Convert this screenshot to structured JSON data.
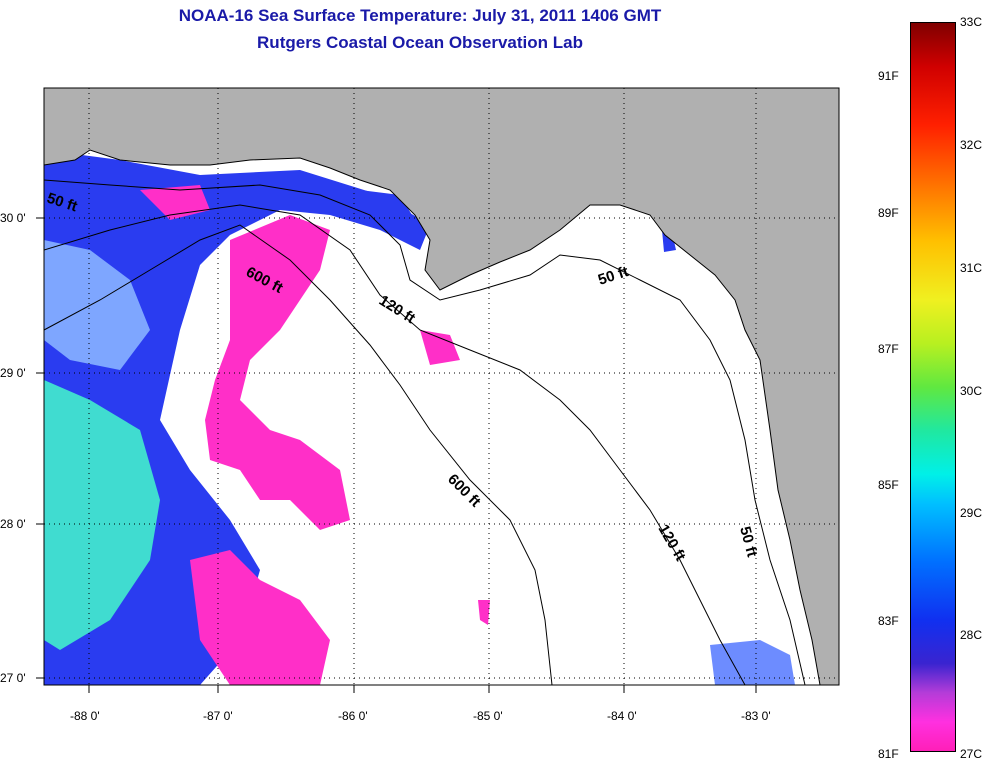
{
  "header": {
    "title_line1": "NOAA-16 Sea Surface Temperature:  July 31, 2011 1406 GMT",
    "title_line2": "Rutgers Coastal Ocean Observation Lab"
  },
  "map": {
    "longitude_labels": [
      "-88 0'",
      "-87 0'",
      "-86 0'",
      "-85 0'",
      "-84 0'",
      "-83 0'"
    ],
    "latitude_labels": [
      "30 0'",
      "29 0'",
      "28 0'",
      "27 0'"
    ],
    "contour_labels": [
      "50 ft",
      "600 ft",
      "120 ft",
      "50 ft",
      "600 ft",
      "120 ft",
      "50 ft"
    ],
    "colors": {
      "land": "#b0b0b0",
      "cloud": "#ffffff",
      "cool_water": "#ff2fc8",
      "mid_water": "#1e3cff",
      "warm_water": "#40e8c8",
      "shelf_water": "#7fa8ff"
    }
  },
  "colorbar": {
    "fahrenheit_labels": [
      "91F",
      "89F",
      "87F",
      "85F",
      "83F",
      "81F"
    ],
    "celsius_labels": [
      "33C",
      "32C",
      "31C",
      "30C",
      "29C",
      "28C",
      "27C"
    ]
  }
}
